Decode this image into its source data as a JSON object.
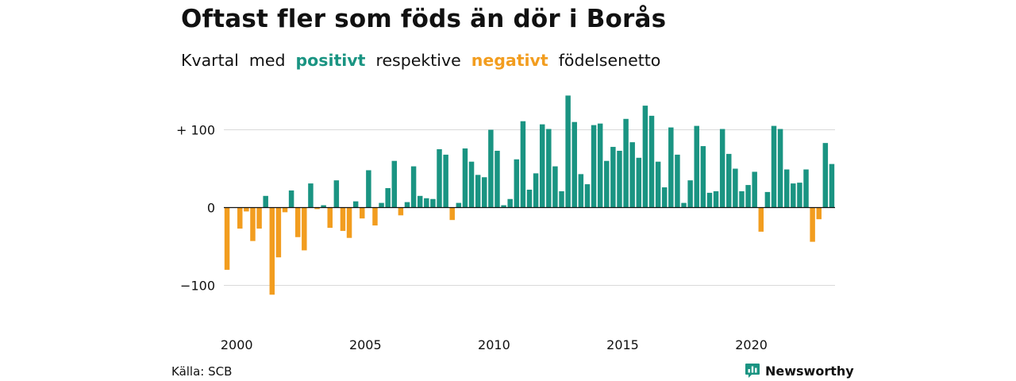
{
  "title": "Oftast fler som föds än dör i Borås",
  "subtitle": {
    "part1": "Kvartal",
    "part2": "med",
    "positive_word": "positivt",
    "part3": "respektive",
    "negative_word": "negativt",
    "part4": "födelsenetto"
  },
  "colors": {
    "positive": "#1a9482",
    "negative": "#f29d1f",
    "grid": "#d9d9d9",
    "zero_line": "#111111"
  },
  "source": "Källa: SCB",
  "brand": {
    "name": "Newsworthy",
    "icon": "newsworthy-chart-bubble-icon"
  },
  "chart_data": {
    "type": "bar",
    "title": "Oftast fler som föds än dör i Borås",
    "xlabel": "",
    "ylabel": "",
    "ylim": [
      -140,
      150
    ],
    "grid": true,
    "y_ticks": [
      {
        "value": 100,
        "label": "+ 100"
      },
      {
        "value": 0,
        "label": "0"
      },
      {
        "value": -100,
        "label": "−100"
      }
    ],
    "x_ticks": [
      2000,
      2005,
      2010,
      2015,
      2020
    ],
    "start_year": 2000,
    "start_quarter": 1,
    "values": [
      -80,
      0,
      -27,
      -5,
      -43,
      -27,
      15,
      -112,
      -64,
      -6,
      22,
      -38,
      -55,
      31,
      -2,
      3,
      -26,
      35,
      -30,
      -39,
      8,
      -14,
      48,
      -23,
      6,
      25,
      60,
      -10,
      7,
      53,
      15,
      12,
      11,
      75,
      68,
      -16,
      6,
      76,
      59,
      42,
      39,
      100,
      73,
      3,
      11,
      62,
      111,
      23,
      44,
      107,
      101,
      53,
      21,
      144,
      110,
      43,
      30,
      106,
      108,
      60,
      78,
      73,
      114,
      84,
      64,
      131,
      118,
      59,
      26,
      103,
      68,
      6,
      35,
      105,
      79,
      19,
      21,
      101,
      69,
      50,
      21,
      29,
      46,
      -31,
      20,
      105,
      101,
      49,
      31,
      32,
      49,
      -44,
      -15,
      83,
      56
    ]
  }
}
